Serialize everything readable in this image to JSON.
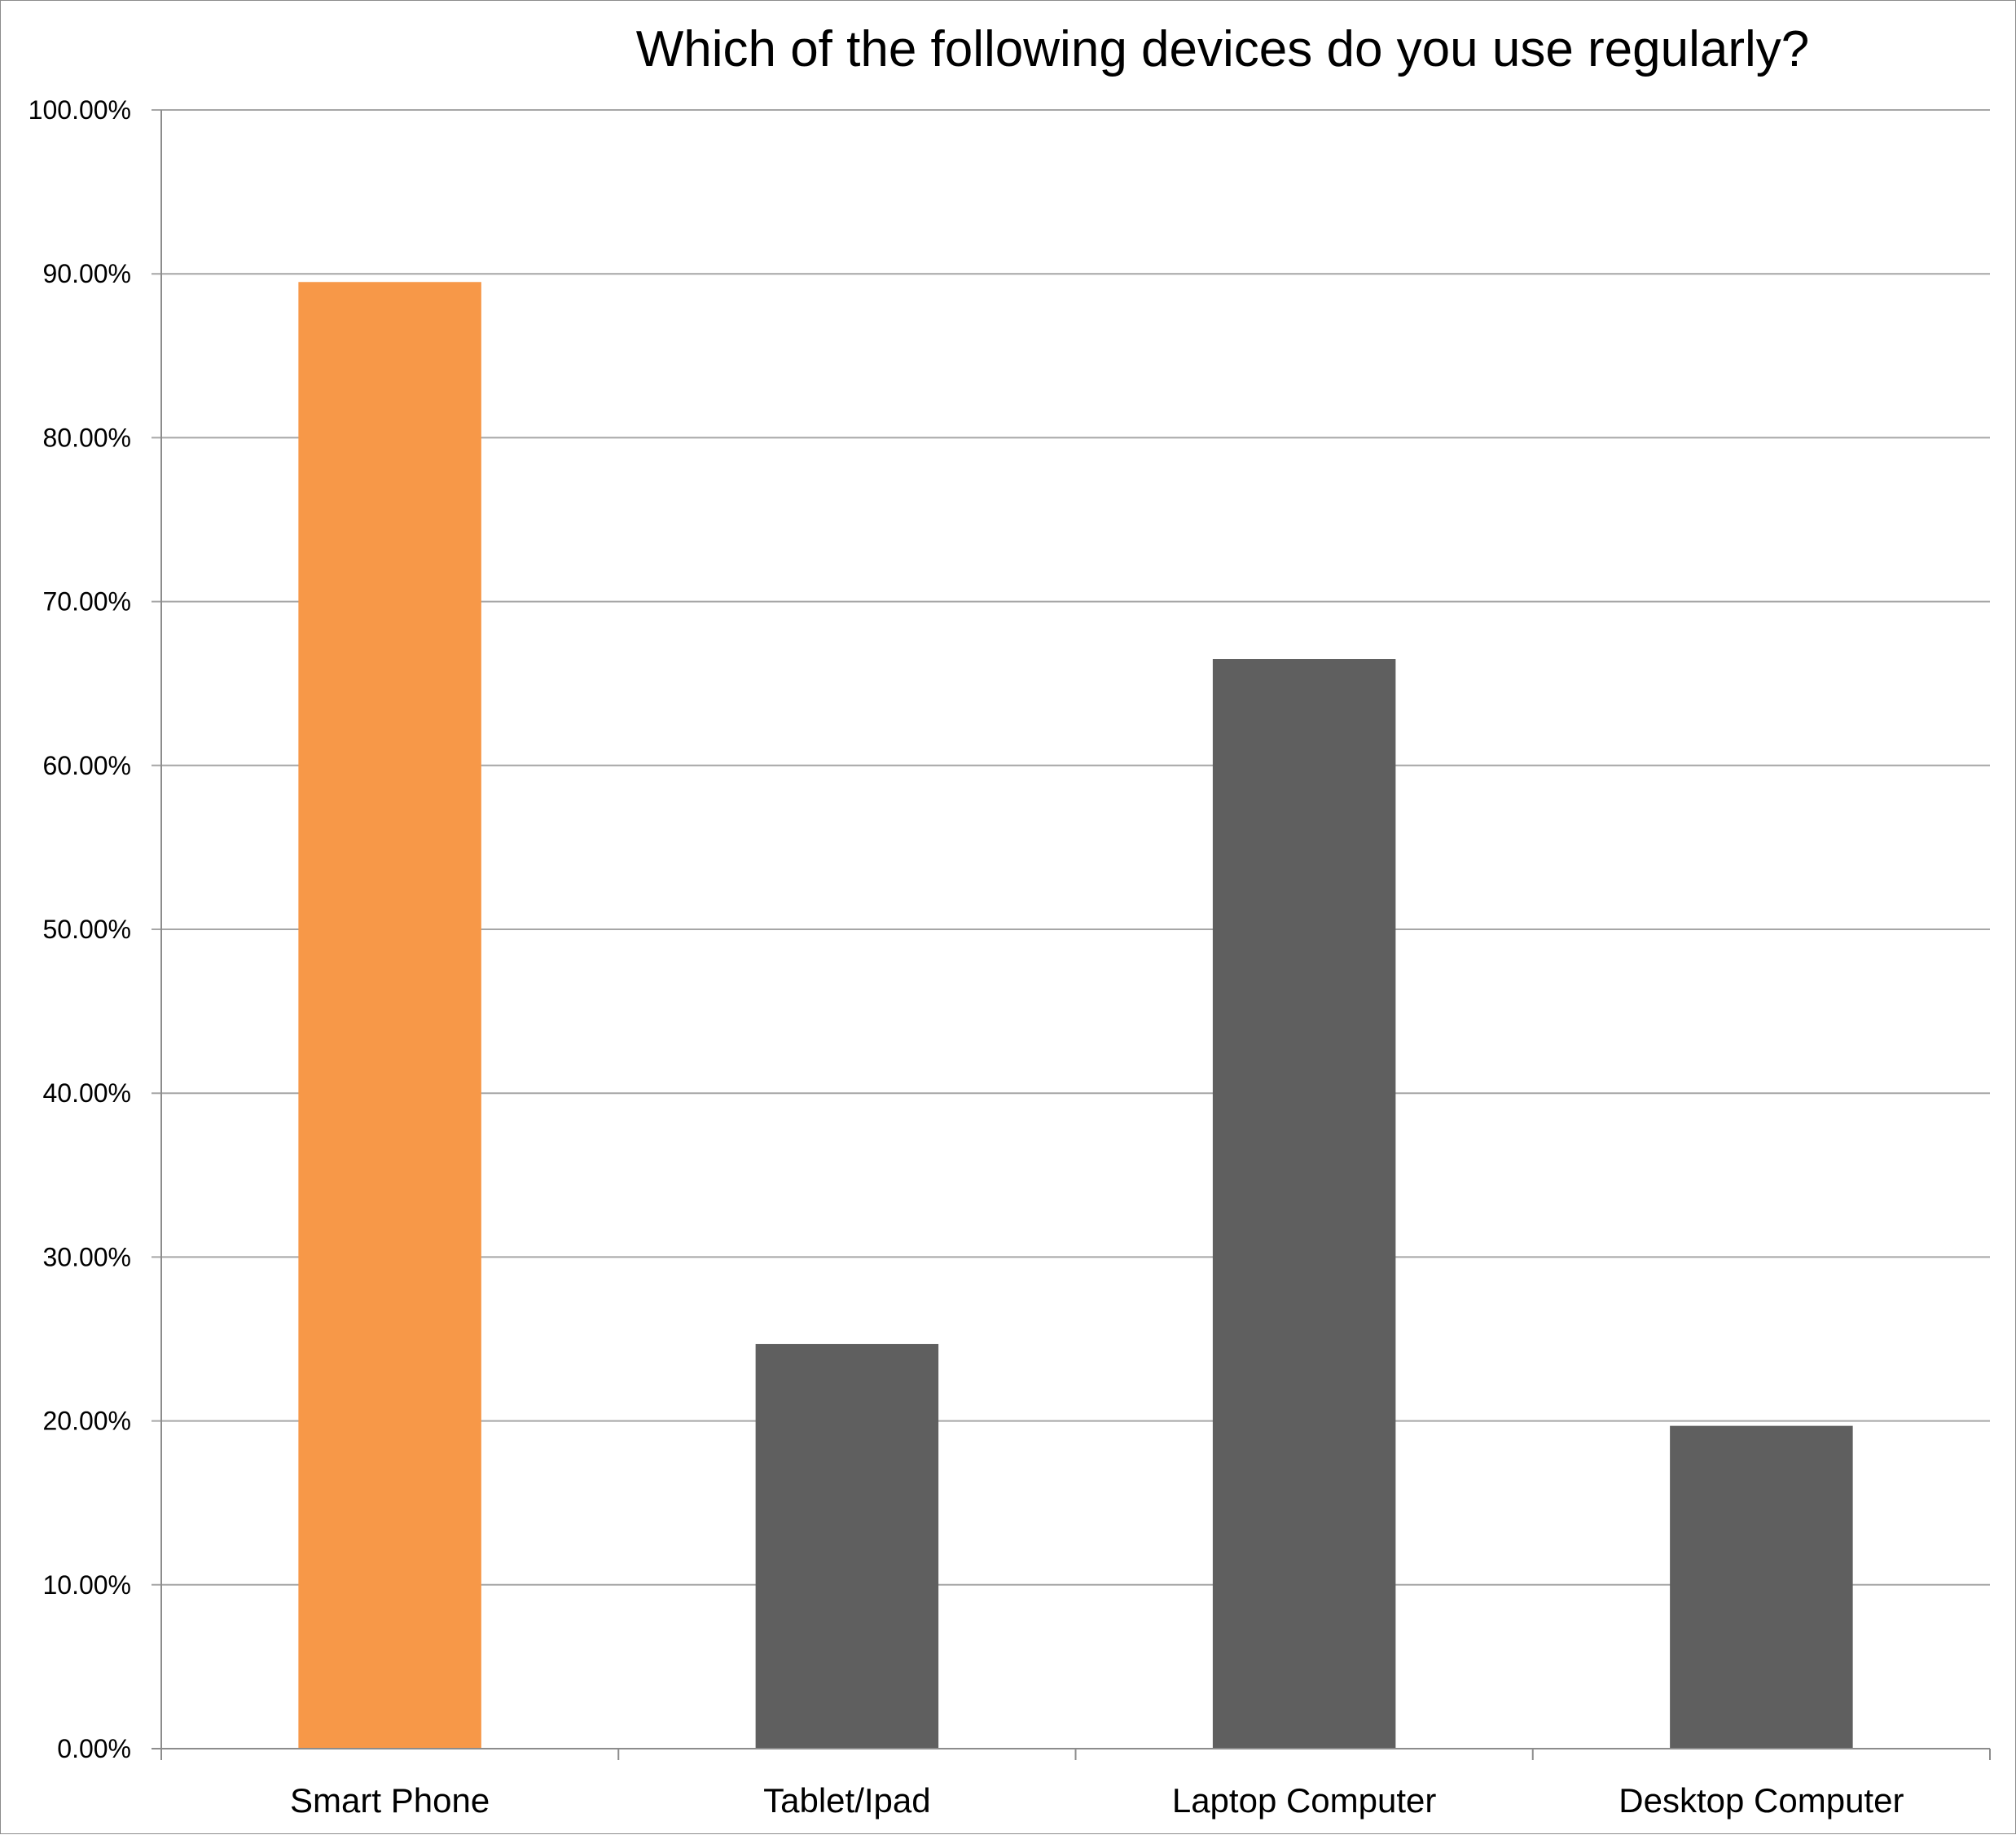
{
  "chart_data": {
    "type": "bar",
    "title": "Which of the following devices do you use regularly?",
    "xlabel": "",
    "ylabel": "",
    "categories": [
      "Smart Phone",
      "Tablet/Ipad",
      "Laptop Computer",
      "Desktop Computer"
    ],
    "values": [
      89.5,
      24.7,
      66.5,
      19.7
    ],
    "ylim": [
      0,
      100
    ],
    "yticks": [
      0,
      10,
      20,
      30,
      40,
      50,
      60,
      70,
      80,
      90,
      100
    ],
    "ytick_labels": [
      "0.00%",
      "10.00%",
      "20.00%",
      "30.00%",
      "40.00%",
      "50.00%",
      "60.00%",
      "70.00%",
      "80.00%",
      "90.00%",
      "100.00%"
    ],
    "grid": true,
    "legend": "none",
    "colors": {
      "highlight": "#f79848",
      "default": "#5f5f5f",
      "grid": "#a6a6a6",
      "axis": "#8c8c8c"
    },
    "highlight_index": 0
  }
}
